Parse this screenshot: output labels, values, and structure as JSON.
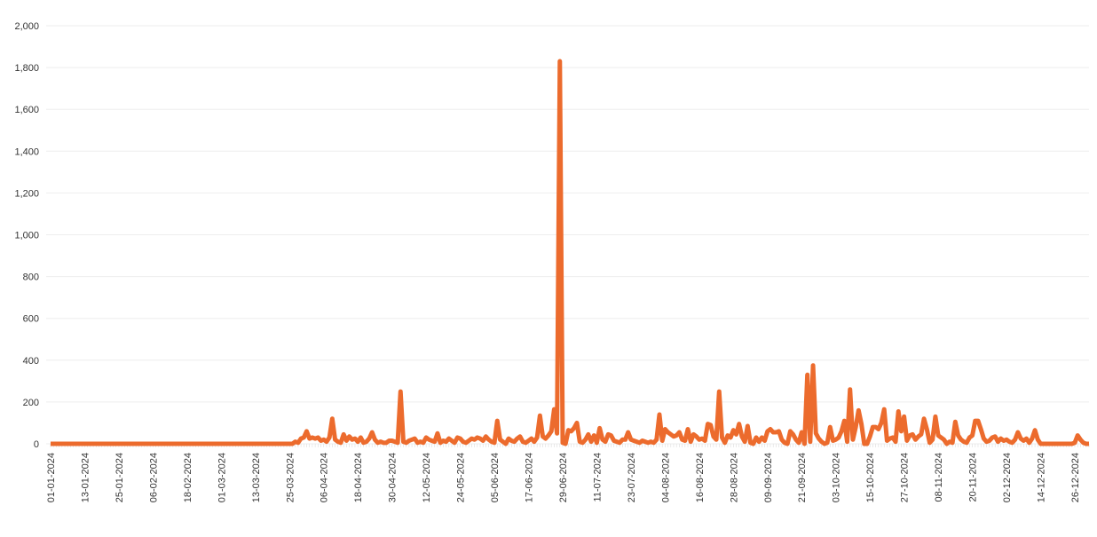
{
  "chart_data": {
    "type": "line",
    "color": "#ec6b2d",
    "grid": true,
    "ylim": [
      0,
      2000
    ],
    "yticks": [
      0,
      200,
      400,
      600,
      800,
      {
        "value": 1000,
        "label": "1,000"
      },
      {
        "value": 1200,
        "label": "1,200"
      },
      {
        "value": 1400,
        "label": "1,400"
      },
      {
        "value": 1600,
        "label": "1,600"
      },
      {
        "value": 1800,
        "label": "1,800"
      },
      {
        "value": 2000,
        "label": "2,000"
      }
    ],
    "categories": [
      "01-01-2024",
      null,
      null,
      null,
      null,
      null,
      null,
      null,
      null,
      null,
      null,
      null,
      "13-01-2024",
      null,
      null,
      null,
      null,
      null,
      null,
      null,
      null,
      null,
      null,
      null,
      "25-01-2024",
      null,
      null,
      null,
      null,
      null,
      null,
      null,
      null,
      null,
      null,
      null,
      "06-02-2024",
      null,
      null,
      null,
      null,
      null,
      null,
      null,
      null,
      null,
      null,
      null,
      "18-02-2024",
      null,
      null,
      null,
      null,
      null,
      null,
      null,
      null,
      null,
      null,
      null,
      "01-03-2024",
      null,
      null,
      null,
      null,
      null,
      null,
      null,
      null,
      null,
      null,
      null,
      "13-03-2024",
      null,
      null,
      null,
      null,
      null,
      null,
      null,
      null,
      null,
      null,
      null,
      "25-03-2024",
      null,
      null,
      null,
      null,
      null,
      null,
      null,
      null,
      null,
      null,
      null,
      "06-04-2024",
      null,
      null,
      null,
      null,
      null,
      null,
      null,
      null,
      null,
      null,
      null,
      "18-04-2024",
      null,
      null,
      null,
      null,
      null,
      null,
      null,
      null,
      null,
      null,
      null,
      "30-04-2024",
      null,
      null,
      null,
      null,
      null,
      null,
      null,
      null,
      null,
      null,
      null,
      "12-05-2024",
      null,
      null,
      null,
      null,
      null,
      null,
      null,
      null,
      null,
      null,
      null,
      "24-05-2024",
      null,
      null,
      null,
      null,
      null,
      null,
      null,
      null,
      null,
      null,
      null,
      "05-06-2024",
      null,
      null,
      null,
      null,
      null,
      null,
      null,
      null,
      null,
      null,
      null,
      "17-06-2024",
      null,
      null,
      null,
      null,
      null,
      null,
      null,
      null,
      null,
      null,
      null,
      "29-06-2024",
      null,
      null,
      null,
      null,
      null,
      null,
      null,
      null,
      null,
      null,
      null,
      "11-07-2024",
      null,
      null,
      null,
      null,
      null,
      null,
      null,
      null,
      null,
      null,
      null,
      "23-07-2024",
      null,
      null,
      null,
      null,
      null,
      null,
      null,
      null,
      null,
      null,
      null,
      "04-08-2024",
      null,
      null,
      null,
      null,
      null,
      null,
      null,
      null,
      null,
      null,
      null,
      "16-08-2024",
      null,
      null,
      null,
      null,
      null,
      null,
      null,
      null,
      null,
      null,
      null,
      "28-08-2024",
      null,
      null,
      null,
      null,
      null,
      null,
      null,
      null,
      null,
      null,
      null,
      "09-09-2024",
      null,
      null,
      null,
      null,
      null,
      null,
      null,
      null,
      null,
      null,
      null,
      "21-09-2024",
      null,
      null,
      null,
      null,
      null,
      null,
      null,
      null,
      null,
      null,
      null,
      "03-10-2024",
      null,
      null,
      null,
      null,
      null,
      null,
      null,
      null,
      null,
      null,
      null,
      "15-10-2024",
      null,
      null,
      null,
      null,
      null,
      null,
      null,
      null,
      null,
      null,
      null,
      "27-10-2024",
      null,
      null,
      null,
      null,
      null,
      null,
      null,
      null,
      null,
      null,
      null,
      "08-11-2024",
      null,
      null,
      null,
      null,
      null,
      null,
      null,
      null,
      null,
      null,
      null,
      "20-11-2024",
      null,
      null,
      null,
      null,
      null,
      null,
      null,
      null,
      null,
      null,
      null,
      "02-12-2024",
      null,
      null,
      null,
      null,
      null,
      null,
      null,
      null,
      null,
      null,
      null,
      "14-12-2024",
      null,
      null,
      null,
      null,
      null,
      null,
      null,
      null,
      null,
      null,
      null,
      "26-12-2024",
      null,
      null,
      null,
      null,
      null
    ],
    "values": [
      0,
      0,
      0,
      0,
      0,
      0,
      0,
      0,
      0,
      0,
      0,
      0,
      0,
      0,
      0,
      0,
      0,
      0,
      0,
      0,
      0,
      0,
      0,
      0,
      0,
      0,
      0,
      0,
      0,
      0,
      0,
      0,
      0,
      0,
      0,
      0,
      0,
      0,
      0,
      0,
      0,
      0,
      0,
      0,
      0,
      0,
      0,
      0,
      0,
      0,
      0,
      0,
      0,
      0,
      0,
      0,
      0,
      0,
      0,
      0,
      0,
      0,
      0,
      0,
      0,
      0,
      0,
      0,
      0,
      0,
      0,
      0,
      0,
      0,
      0,
      0,
      0,
      0,
      0,
      0,
      0,
      0,
      0,
      0,
      0,
      0,
      10,
      5,
      25,
      30,
      60,
      25,
      30,
      25,
      30,
      15,
      20,
      10,
      30,
      120,
      20,
      10,
      5,
      45,
      15,
      35,
      20,
      25,
      10,
      30,
      5,
      10,
      25,
      55,
      20,
      5,
      10,
      5,
      5,
      15,
      15,
      10,
      5,
      250,
      10,
      5,
      15,
      20,
      25,
      5,
      10,
      5,
      30,
      20,
      15,
      10,
      50,
      5,
      15,
      10,
      25,
      15,
      5,
      30,
      25,
      10,
      5,
      15,
      25,
      20,
      30,
      25,
      15,
      35,
      20,
      10,
      5,
      110,
      20,
      10,
      0,
      25,
      15,
      10,
      25,
      35,
      10,
      5,
      15,
      25,
      10,
      30,
      135,
      35,
      25,
      40,
      60,
      165,
      50,
      1830,
      5,
      0,
      65,
      60,
      75,
      100,
      10,
      5,
      20,
      45,
      10,
      40,
      5,
      75,
      20,
      10,
      45,
      40,
      15,
      10,
      5,
      20,
      20,
      55,
      20,
      15,
      10,
      5,
      15,
      10,
      5,
      10,
      5,
      20,
      140,
      15,
      70,
      55,
      45,
      35,
      40,
      55,
      20,
      15,
      70,
      10,
      45,
      35,
      20,
      25,
      15,
      95,
      90,
      35,
      20,
      250,
      30,
      5,
      40,
      30,
      65,
      45,
      95,
      35,
      10,
      85,
      5,
      0,
      30,
      10,
      30,
      15,
      60,
      70,
      55,
      55,
      60,
      20,
      5,
      0,
      60,
      45,
      20,
      5,
      55,
      0,
      330,
      10,
      375,
      50,
      25,
      10,
      0,
      5,
      80,
      15,
      20,
      30,
      60,
      110,
      10,
      260,
      20,
      80,
      160,
      95,
      0,
      0,
      35,
      80,
      80,
      70,
      100,
      165,
      15,
      25,
      30,
      10,
      155,
      60,
      130,
      15,
      40,
      45,
      20,
      35,
      45,
      120,
      70,
      5,
      20,
      130,
      40,
      30,
      20,
      0,
      10,
      5,
      105,
      40,
      20,
      10,
      5,
      30,
      40,
      110,
      110,
      70,
      25,
      10,
      15,
      30,
      35,
      10,
      25,
      15,
      20,
      10,
      5,
      20,
      55,
      25,
      15,
      25,
      5,
      25,
      65,
      20,
      0,
      0,
      0,
      0,
      0,
      0,
      0,
      0,
      0,
      0,
      0,
      0,
      5,
      40,
      20,
      5,
      0,
      0
    ]
  }
}
